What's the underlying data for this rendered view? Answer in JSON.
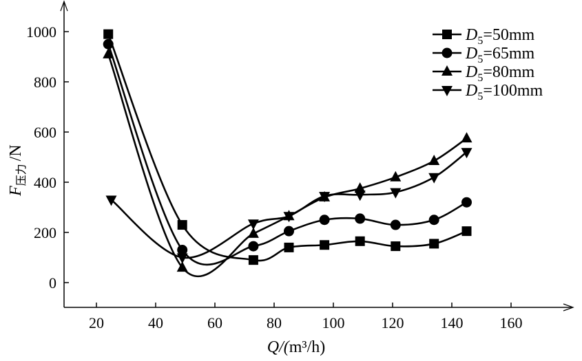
{
  "chart_data": {
    "type": "line",
    "title": "",
    "xlabel": "Q/(m³/h)",
    "xlabel_var": "Q",
    "xlabel_unit": "/(m",
    "xlabel_sup": "3",
    "xlabel_unit2": "/h)",
    "ylabel_var": "F",
    "ylabel_sub": "压力",
    "ylabel_unit": "/N",
    "xlim": [
      10,
      180
    ],
    "ylim": [
      -80,
      1100
    ],
    "xticks": [
      20,
      40,
      60,
      80,
      100,
      120,
      140,
      160
    ],
    "yticks": [
      0,
      200,
      400,
      600,
      800,
      1000
    ],
    "grid": false,
    "legend_position": "top-right",
    "series": [
      {
        "name": "D5=50mm",
        "var": "D",
        "sub": "5",
        "rest": "=50mm",
        "marker": "square",
        "x": [
          24,
          49,
          73,
          85,
          97,
          109,
          121,
          134,
          145
        ],
        "y": [
          990,
          230,
          90,
          140,
          150,
          165,
          145,
          155,
          205
        ]
      },
      {
        "name": "D5=65mm",
        "var": "D",
        "sub": "5",
        "rest": "=65mm",
        "marker": "circle",
        "x": [
          24,
          49,
          73,
          85,
          97,
          109,
          121,
          134,
          145
        ],
        "y": [
          950,
          130,
          145,
          205,
          250,
          255,
          230,
          250,
          320
        ]
      },
      {
        "name": "D5=80mm",
        "var": "D",
        "sub": "5",
        "rest": "=80mm",
        "marker": "triangle-up",
        "x": [
          24,
          49,
          73,
          85,
          97,
          109,
          121,
          134,
          145
        ],
        "y": [
          910,
          60,
          195,
          265,
          340,
          375,
          420,
          485,
          575
        ]
      },
      {
        "name": "D5=100mm",
        "var": "D",
        "sub": "5",
        "rest": "=100mm",
        "marker": "triangle-down",
        "x": [
          25,
          49,
          73,
          85,
          97,
          109,
          121,
          134,
          145
        ],
        "y": [
          330,
          100,
          235,
          265,
          345,
          350,
          360,
          420,
          520
        ]
      }
    ]
  }
}
